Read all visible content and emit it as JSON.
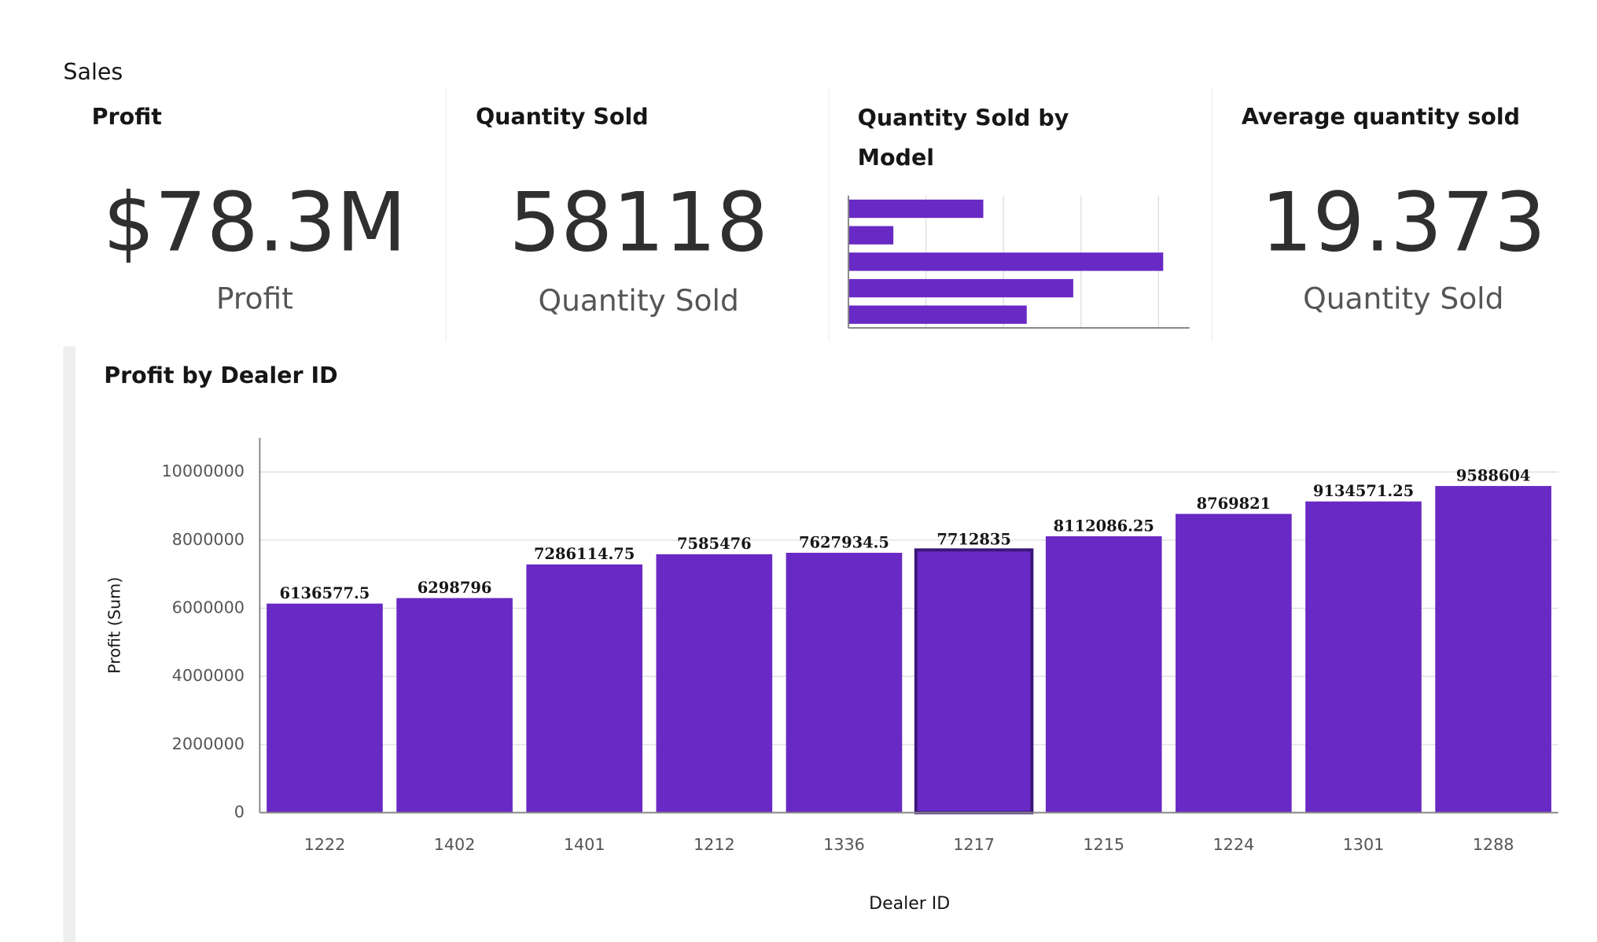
{
  "page": {
    "title": "Sales"
  },
  "kpis": [
    {
      "title": "Profit",
      "value": "$78.3M",
      "label": "Profit"
    },
    {
      "title": "Quantity Sold",
      "value": 58118,
      "label": "Quantity Sold"
    },
    {
      "title": "Average quantity sold",
      "value": 19.373,
      "label": "Quantity Sold"
    }
  ],
  "chart_data": [
    {
      "type": "hbar",
      "title": "Quantity Sold by Model",
      "categories": [
        null,
        null,
        null,
        null,
        null
      ],
      "values": [
        8700,
        2900,
        20300,
        14500,
        11500
      ],
      "color": "#6929c4",
      "xlim": [
        0,
        22000
      ],
      "xticks": [
        0,
        5000,
        10000,
        15000,
        20000
      ],
      "grid": true
    },
    {
      "type": "bar",
      "title": "Profit by Dealer ID",
      "x_label": "Dealer ID",
      "y_label": "Profit (Sum)",
      "categories": [
        "1222",
        "1402",
        "1401",
        "1212",
        "1336",
        "1217",
        "1215",
        "1224",
        "1301",
        "1288"
      ],
      "values": [
        6136577.5,
        6298796,
        7286114.75,
        7585476,
        7627934.5,
        7712835,
        8112086.25,
        8769821,
        9134571.25,
        9588604
      ],
      "color": "#6929c4",
      "selected_index": 5,
      "ylim": [
        0,
        11000000
      ],
      "yticks": [
        0,
        2000000,
        4000000,
        6000000,
        8000000,
        10000000
      ],
      "grid": true
    }
  ]
}
